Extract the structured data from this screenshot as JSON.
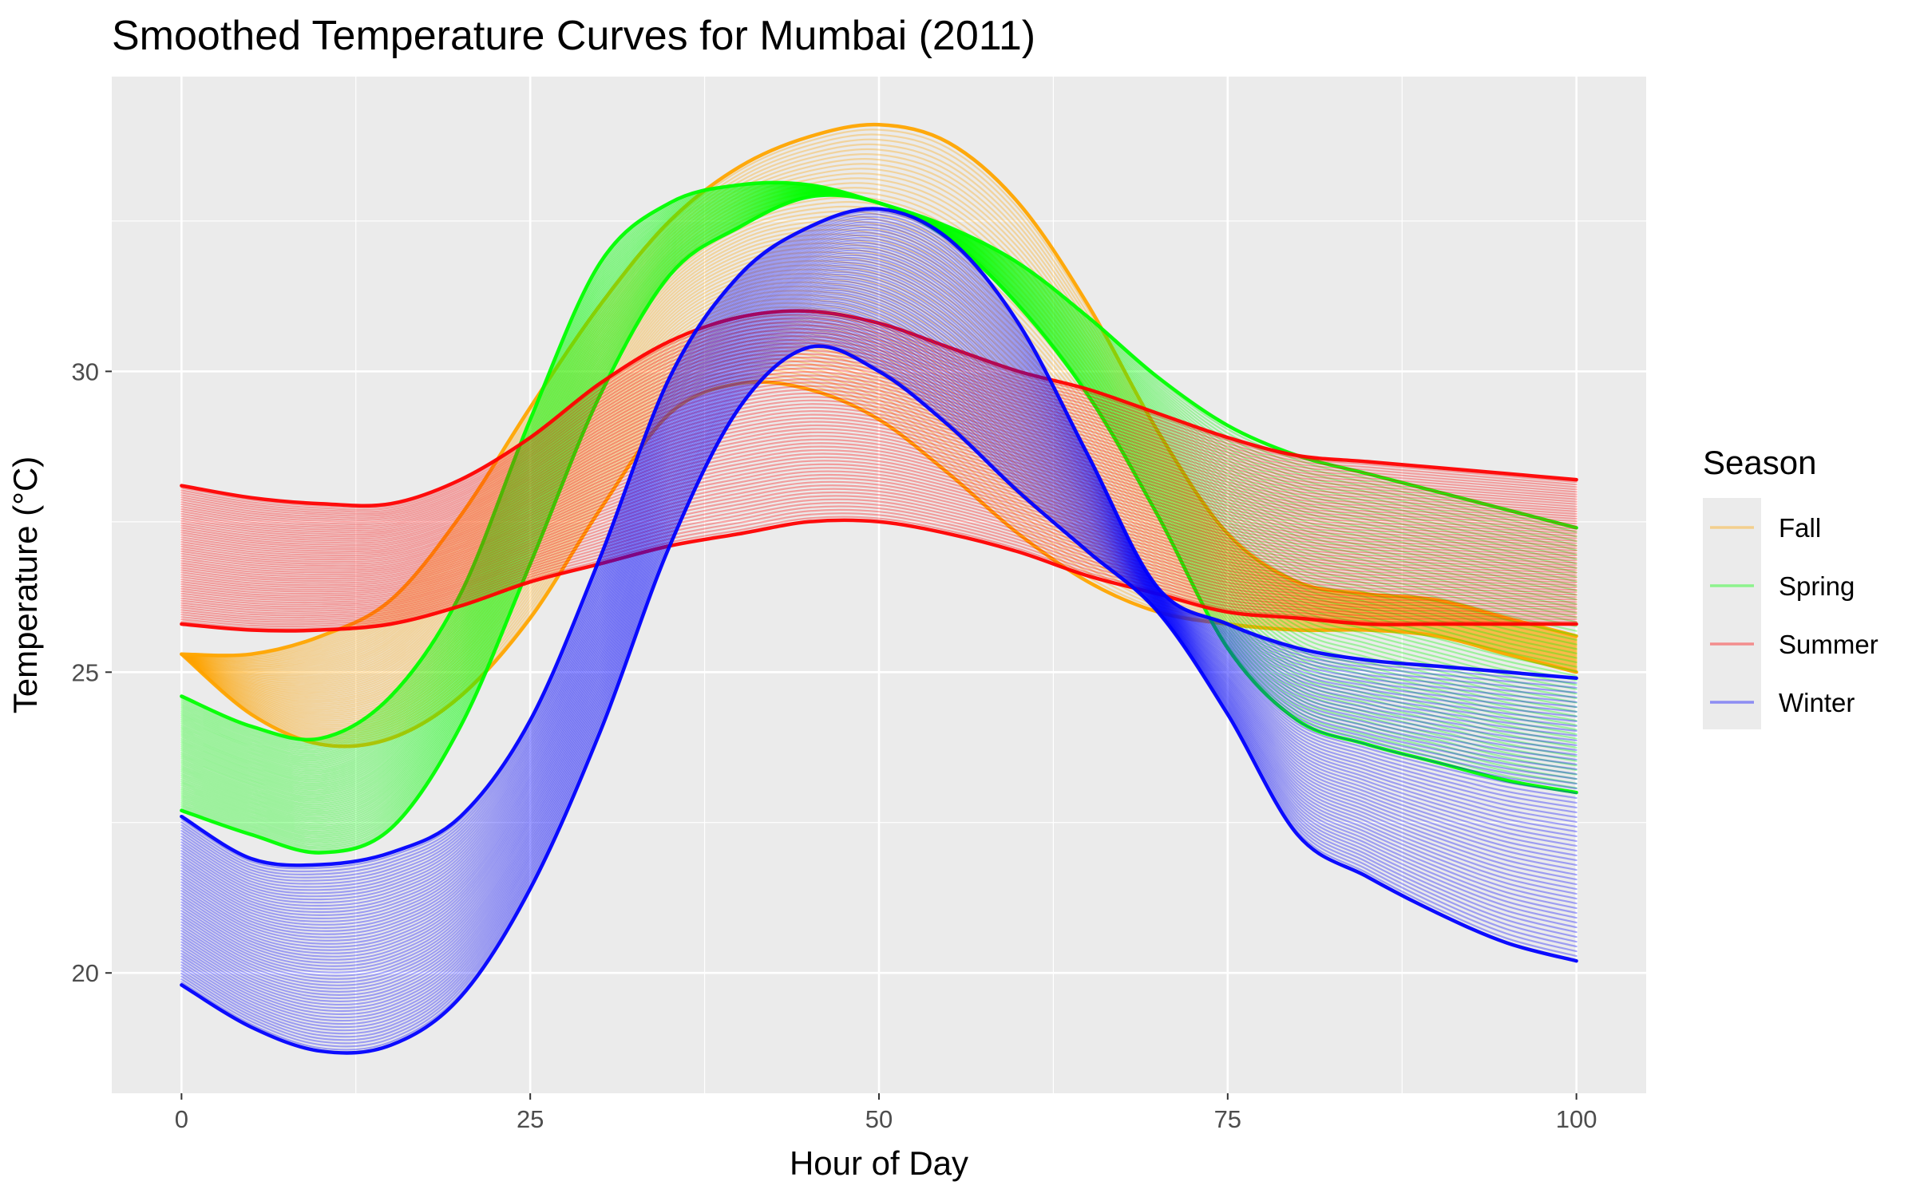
{
  "chart_data": {
    "type": "line",
    "title": "Smoothed Temperature Curves for Mumbai (2011)",
    "xlabel": "Hour of Day",
    "ylabel": "Temperature (°C)",
    "xlim": [
      -5,
      105
    ],
    "ylim": [
      18.0,
      34.9
    ],
    "x_ticks": [
      0,
      25,
      50,
      75,
      100
    ],
    "x_tick_labels": [
      "0",
      "25",
      "50",
      "75",
      "100"
    ],
    "y_ticks": [
      20,
      25,
      30
    ],
    "y_tick_labels": [
      "20",
      "25",
      "30"
    ],
    "grid": true,
    "legend": {
      "title": "Season",
      "position": "right"
    },
    "x_knots": [
      0,
      5,
      10,
      15,
      20,
      25,
      30,
      35,
      40,
      45,
      50,
      55,
      60,
      65,
      70,
      75,
      80,
      85,
      90,
      95,
      100
    ],
    "series": [
      {
        "name": "Fall",
        "color": "#ffa500",
        "curves_per_band": 60,
        "lower": [
          25.3,
          24.3,
          23.8,
          23.9,
          24.6,
          25.9,
          27.7,
          29.3,
          29.8,
          29.7,
          29.2,
          28.3,
          27.3,
          26.5,
          26.0,
          25.8,
          25.7,
          25.7,
          25.6,
          25.3,
          25.0
        ],
        "upper": [
          25.3,
          25.3,
          25.6,
          26.2,
          27.6,
          29.4,
          31.1,
          32.5,
          33.4,
          33.9,
          34.1,
          33.8,
          32.8,
          31.1,
          29.0,
          27.3,
          26.5,
          26.3,
          26.2,
          25.9,
          25.6
        ]
      },
      {
        "name": "Spring",
        "color": "#00ff00",
        "curves_per_band": 60,
        "lower": [
          22.7,
          22.3,
          22.0,
          22.4,
          24.1,
          26.8,
          29.6,
          31.6,
          32.4,
          32.9,
          32.8,
          32.2,
          31.1,
          29.6,
          27.6,
          25.4,
          24.2,
          23.8,
          23.5,
          23.2,
          23.0
        ],
        "upper": [
          24.6,
          24.1,
          23.9,
          24.6,
          26.3,
          29.2,
          31.8,
          32.8,
          33.1,
          33.1,
          32.8,
          32.4,
          31.8,
          30.9,
          29.9,
          29.1,
          28.6,
          28.3,
          28.0,
          27.7,
          27.4
        ]
      },
      {
        "name": "Summer",
        "color": "#ff0000",
        "curves_per_band": 60,
        "lower": [
          25.8,
          25.7,
          25.7,
          25.8,
          26.1,
          26.5,
          26.8,
          27.1,
          27.3,
          27.5,
          27.5,
          27.3,
          27.0,
          26.6,
          26.3,
          26.0,
          25.9,
          25.8,
          25.8,
          25.8,
          25.8
        ],
        "upper": [
          28.1,
          27.9,
          27.8,
          27.8,
          28.2,
          28.9,
          29.8,
          30.5,
          30.9,
          31.0,
          30.8,
          30.4,
          30.0,
          29.7,
          29.3,
          28.9,
          28.6,
          28.5,
          28.4,
          28.3,
          28.2
        ]
      },
      {
        "name": "Winter",
        "color": "#0000ff",
        "curves_per_band": 60,
        "lower": [
          19.8,
          19.1,
          18.7,
          18.8,
          19.6,
          21.4,
          24.0,
          27.1,
          29.4,
          30.4,
          30.0,
          29.1,
          28.0,
          27.0,
          26.0,
          24.3,
          22.3,
          21.6,
          21.0,
          20.5,
          20.2
        ],
        "upper": [
          22.6,
          21.9,
          21.8,
          22.0,
          22.6,
          24.2,
          26.9,
          29.9,
          31.6,
          32.4,
          32.7,
          32.2,
          30.8,
          28.6,
          26.4,
          25.8,
          25.4,
          25.2,
          25.1,
          25.0,
          24.9
        ]
      }
    ]
  }
}
